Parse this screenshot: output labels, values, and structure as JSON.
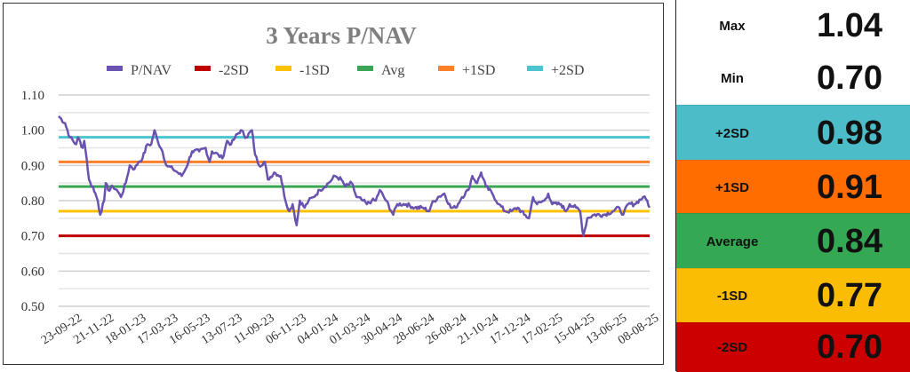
{
  "chart_data": {
    "type": "line",
    "title": "3 Years P/NAV",
    "xlabel": "",
    "ylabel": "",
    "ylim": [
      0.5,
      1.1
    ],
    "yticks": [
      "1.10",
      "1.00",
      "0.90",
      "0.80",
      "0.70",
      "0.60",
      "0.50"
    ],
    "ytick_values": [
      1.1,
      1.0,
      0.9,
      0.8,
      0.7,
      0.6,
      0.5
    ],
    "x_range": [
      0,
      740
    ],
    "x_tick_labels": [
      "23-09-22",
      "21-11-22",
      "18-01-23",
      "17-03-23",
      "16-05-23",
      "13-07-23",
      "11-09-23",
      "06-11-23",
      "04-01-24",
      "01-03-24",
      "30-04-24",
      "28-06-24",
      "26-08-24",
      "21-10-24",
      "17-12-24",
      "17-02-25",
      "15-04-25",
      "13-06-25",
      "08-08-25"
    ],
    "grid": true,
    "legend_position": "top",
    "legend": [
      "P/NAV",
      "-2SD",
      "-1SD",
      "Avg",
      "+1SD",
      "+2SD"
    ],
    "colors": {
      "P/NAV": "#6a52b0",
      "-2SD": "#c00000",
      "-1SD": "#ffc000",
      "Avg": "#3aa655",
      "+1SD": "#ff7f27",
      "+2SD": "#4bc4cf"
    },
    "series": [
      {
        "name": "P/NAV",
        "x_unit": "trading day index",
        "points": [
          [
            0,
            1.04
          ],
          [
            8,
            1.02
          ],
          [
            14,
            0.98
          ],
          [
            22,
            0.96
          ],
          [
            24,
            0.98
          ],
          [
            30,
            0.95
          ],
          [
            32,
            0.97
          ],
          [
            35,
            0.92
          ],
          [
            38,
            0.86
          ],
          [
            41,
            0.84
          ],
          [
            43,
            0.84
          ],
          [
            49,
            0.8
          ],
          [
            52,
            0.76
          ],
          [
            57,
            0.8
          ],
          [
            59,
            0.85
          ],
          [
            62,
            0.83
          ],
          [
            68,
            0.84
          ],
          [
            73,
            0.83
          ],
          [
            78,
            0.81
          ],
          [
            84,
            0.85
          ],
          [
            89,
            0.9
          ],
          [
            95,
            0.89
          ],
          [
            100,
            0.91
          ],
          [
            105,
            0.92
          ],
          [
            111,
            0.96
          ],
          [
            116,
            0.96
          ],
          [
            120,
            1.0
          ],
          [
            124,
            0.97
          ],
          [
            130,
            0.94
          ],
          [
            135,
            0.9
          ],
          [
            143,
            0.89
          ],
          [
            149,
            0.88
          ],
          [
            154,
            0.87
          ],
          [
            159,
            0.89
          ],
          [
            167,
            0.94
          ],
          [
            176,
            0.94
          ],
          [
            184,
            0.95
          ],
          [
            189,
            0.91
          ],
          [
            192,
            0.94
          ],
          [
            200,
            0.93
          ],
          [
            205,
            0.92
          ],
          [
            211,
            0.97
          ],
          [
            216,
            0.96
          ],
          [
            221,
            0.98
          ],
          [
            228,
            1.0
          ],
          [
            235,
            0.98
          ],
          [
            242,
            1.0
          ],
          [
            246,
            0.93
          ],
          [
            251,
            0.9
          ],
          [
            258,
            0.91
          ],
          [
            262,
            0.86
          ],
          [
            270,
            0.88
          ],
          [
            278,
            0.87
          ],
          [
            284,
            0.8
          ],
          [
            289,
            0.77
          ],
          [
            293,
            0.79
          ],
          [
            298,
            0.73
          ],
          [
            302,
            0.8
          ],
          [
            308,
            0.78
          ],
          [
            313,
            0.8
          ],
          [
            319,
            0.81
          ],
          [
            327,
            0.83
          ],
          [
            338,
            0.85
          ],
          [
            346,
            0.87
          ],
          [
            354,
            0.86
          ],
          [
            359,
            0.84
          ],
          [
            367,
            0.85
          ],
          [
            373,
            0.81
          ],
          [
            381,
            0.8
          ],
          [
            386,
            0.79
          ],
          [
            392,
            0.8
          ],
          [
            397,
            0.8
          ],
          [
            402,
            0.83
          ],
          [
            410,
            0.8
          ],
          [
            419,
            0.76
          ],
          [
            424,
            0.79
          ],
          [
            435,
            0.79
          ],
          [
            446,
            0.78
          ],
          [
            456,
            0.78
          ],
          [
            464,
            0.77
          ],
          [
            467,
            0.79
          ],
          [
            475,
            0.81
          ],
          [
            483,
            0.82
          ],
          [
            491,
            0.78
          ],
          [
            497,
            0.78
          ],
          [
            505,
            0.81
          ],
          [
            513,
            0.83
          ],
          [
            518,
            0.87
          ],
          [
            524,
            0.85
          ],
          [
            529,
            0.88
          ],
          [
            535,
            0.84
          ],
          [
            543,
            0.82
          ],
          [
            551,
            0.79
          ],
          [
            559,
            0.77
          ],
          [
            567,
            0.77
          ],
          [
            575,
            0.78
          ],
          [
            583,
            0.76
          ],
          [
            589,
            0.75
          ],
          [
            594,
            0.81
          ],
          [
            599,
            0.79
          ],
          [
            608,
            0.8
          ],
          [
            613,
            0.82
          ],
          [
            618,
            0.79
          ],
          [
            629,
            0.79
          ],
          [
            635,
            0.77
          ],
          [
            640,
            0.79
          ],
          [
            648,
            0.78
          ],
          [
            653,
            0.77
          ],
          [
            657,
            0.7
          ],
          [
            662,
            0.75
          ],
          [
            670,
            0.76
          ],
          [
            683,
            0.76
          ],
          [
            694,
            0.77
          ],
          [
            702,
            0.78
          ],
          [
            707,
            0.76
          ],
          [
            713,
            0.79
          ],
          [
            721,
            0.79
          ],
          [
            732,
            0.81
          ],
          [
            737,
            0.8
          ],
          [
            740,
            0.78
          ]
        ]
      },
      {
        "name": "-2SD",
        "value": 0.7
      },
      {
        "name": "-1SD",
        "value": 0.77
      },
      {
        "name": "Avg",
        "value": 0.84
      },
      {
        "name": "+1SD",
        "value": 0.91
      },
      {
        "name": "+2SD",
        "value": 0.98
      }
    ]
  },
  "panel": {
    "rows": [
      {
        "label": "Max",
        "value": "1.04",
        "color": "#ffffff"
      },
      {
        "label": "Min",
        "value": "0.70",
        "color": "#ffffff"
      },
      {
        "label": "+2SD",
        "value": "0.98",
        "color": "#4bbcc8"
      },
      {
        "label": "+1SD",
        "value": "0.91",
        "color": "#ff6d00"
      },
      {
        "label": "Average",
        "value": "0.84",
        "color": "#34a853"
      },
      {
        "label": "-1SD",
        "value": "0.77",
        "color": "#fbbc04"
      },
      {
        "label": "-2SD",
        "value": "0.70",
        "color": "#cc0000"
      }
    ]
  }
}
